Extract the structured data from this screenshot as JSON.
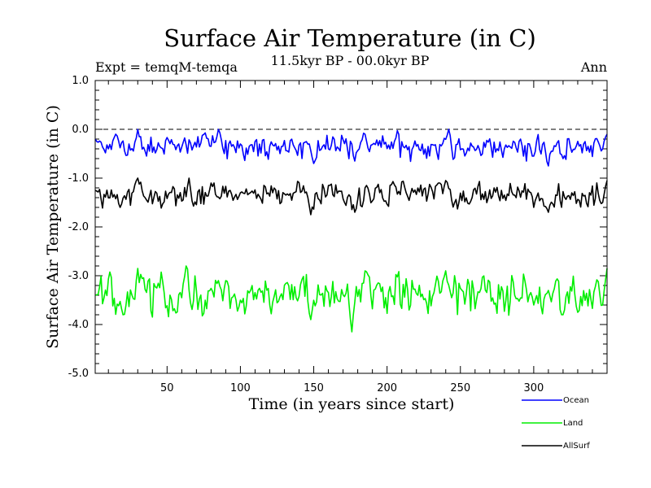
{
  "chart_data": {
    "type": "line",
    "title": "Surface Air Temperature (in C)",
    "subtitle": "11.5kyr BP - 00.0kyr BP",
    "experiment": "Expt = temqM-temqa",
    "period": "Ann",
    "xlabel": "Time (in years since start)",
    "ylabel": "Surface Air Temperature (in C)",
    "xlim": [
      1,
      350
    ],
    "ylim": [
      -5.0,
      1.0
    ],
    "xticks": [
      50,
      100,
      150,
      200,
      250,
      300
    ],
    "xtick_labels": [
      "50",
      "100",
      "150",
      "200",
      "250",
      "300"
    ],
    "yticks": [
      1.0,
      0.0,
      -1.0,
      -2.0,
      -3.0,
      -4.0,
      -5.0
    ],
    "ytick_labels": [
      "1.0",
      "0.0",
      "-1.0",
      "-2.0",
      "-3.0",
      "-4.0",
      "-5.0"
    ],
    "reference_line": 0.0,
    "legend": {
      "placement": "bottom-right",
      "entries": [
        "Ocean",
        "Land",
        "AllSurf"
      ]
    },
    "series": [
      {
        "name": "Ocean",
        "color": "#0000ff",
        "mean": -0.35,
        "amplitude": 0.17,
        "anchors": [
          [
            1,
            -0.2
          ],
          [
            10,
            -0.4
          ],
          [
            15,
            -0.1
          ],
          [
            30,
            0.0
          ],
          [
            85,
            0.0
          ],
          [
            100,
            -0.3
          ],
          [
            150,
            -0.7
          ],
          [
            178,
            -0.65
          ],
          [
            185,
            -0.1
          ],
          [
            242,
            0.0
          ],
          [
            300,
            -0.55
          ],
          [
            310,
            -0.75
          ],
          [
            320,
            -0.6
          ],
          [
            347,
            -0.4
          ],
          [
            350,
            -0.1
          ]
        ]
      },
      {
        "name": "AllSurf",
        "color": "#000000",
        "mean": -1.35,
        "amplitude": 0.18,
        "anchors": [
          [
            1,
            -1.25
          ],
          [
            18,
            -1.6
          ],
          [
            30,
            -1.0
          ],
          [
            65,
            -1.0
          ],
          [
            80,
            -1.1
          ],
          [
            100,
            -1.3
          ],
          [
            148,
            -1.75
          ],
          [
            178,
            -1.7
          ],
          [
            186,
            -1.15
          ],
          [
            240,
            -1.05
          ],
          [
            300,
            -1.6
          ],
          [
            310,
            -1.7
          ],
          [
            347,
            -1.5
          ],
          [
            350,
            -1.05
          ]
        ]
      },
      {
        "name": "Land",
        "color": "#00ee00",
        "mean": -3.4,
        "amplitude": 0.28,
        "anchors": [
          [
            1,
            -3.4
          ],
          [
            20,
            -3.8
          ],
          [
            30,
            -2.85
          ],
          [
            63,
            -2.8
          ],
          [
            85,
            -3.1
          ],
          [
            100,
            -3.5
          ],
          [
            148,
            -3.9
          ],
          [
            176,
            -4.15
          ],
          [
            185,
            -2.9
          ],
          [
            240,
            -2.9
          ],
          [
            300,
            -3.6
          ],
          [
            320,
            -3.8
          ],
          [
            347,
            -3.6
          ],
          [
            350,
            -2.85
          ]
        ]
      }
    ]
  }
}
